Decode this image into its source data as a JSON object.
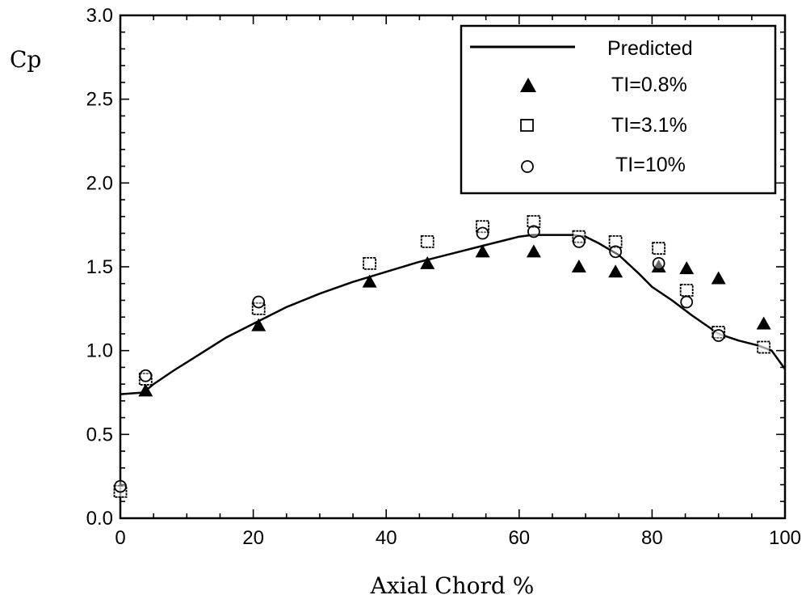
{
  "chart_data": {
    "type": "scatter",
    "title": "",
    "xlabel": "Axial Chord %",
    "ylabel": "Cp",
    "xlim": [
      0,
      100
    ],
    "ylim": [
      0.0,
      3.0
    ],
    "x_ticks": [
      0,
      20,
      40,
      60,
      80,
      100
    ],
    "x_tick_labels": [
      "0",
      "20",
      "40",
      "60",
      "80",
      "100"
    ],
    "y_ticks": [
      0.0,
      0.5,
      1.0,
      1.5,
      2.0,
      2.5,
      3.0
    ],
    "y_tick_labels": [
      "0.0",
      "0.5",
      "1.0",
      "1.5",
      "2.0",
      "2.5",
      "3.0"
    ],
    "grid": false,
    "legend_position": "top-right",
    "series": [
      {
        "name": "Predicted",
        "style": "line",
        "color": "#000000",
        "x": [
          0,
          3.5,
          5,
          8,
          12,
          16,
          20,
          25,
          30,
          35,
          40,
          45,
          50,
          55,
          60,
          62,
          65,
          68,
          70,
          72,
          75,
          78,
          80,
          83,
          86,
          90,
          93,
          96,
          98,
          100
        ],
        "y": [
          0.74,
          0.75,
          0.8,
          0.88,
          0.98,
          1.08,
          1.16,
          1.26,
          1.34,
          1.41,
          1.47,
          1.53,
          1.58,
          1.63,
          1.68,
          1.69,
          1.69,
          1.69,
          1.68,
          1.64,
          1.57,
          1.46,
          1.38,
          1.3,
          1.21,
          1.1,
          1.06,
          1.03,
          1.0,
          0.89
        ]
      },
      {
        "name": "TI=0.8%",
        "marker": "triangle",
        "color": "#000000",
        "x": [
          3.8,
          20.8,
          37.5,
          46.2,
          54.5,
          62.2,
          69.0,
          74.5,
          81.0,
          85.2,
          90.0,
          96.8
        ],
        "y": [
          0.76,
          1.15,
          1.41,
          1.52,
          1.59,
          1.59,
          1.5,
          1.47,
          1.5,
          1.49,
          1.43,
          1.16
        ]
      },
      {
        "name": "TI=3.1%",
        "marker": "square",
        "color": "#000000",
        "x": [
          0,
          3.8,
          20.8,
          37.5,
          46.2,
          54.5,
          62.2,
          69.0,
          74.5,
          81.0,
          85.2,
          90.0,
          96.8
        ],
        "y": [
          0.16,
          0.83,
          1.25,
          1.52,
          1.65,
          1.74,
          1.77,
          1.68,
          1.65,
          1.61,
          1.36,
          1.11,
          1.02
        ]
      },
      {
        "name": "TI=10%",
        "marker": "circle",
        "color": "#000000",
        "x": [
          0,
          3.8,
          20.8,
          54.5,
          62.2,
          69.0,
          74.5,
          81.0,
          85.2,
          90.0
        ],
        "y": [
          0.19,
          0.85,
          1.29,
          1.7,
          1.71,
          1.65,
          1.59,
          1.52,
          1.29,
          1.09
        ]
      }
    ]
  }
}
